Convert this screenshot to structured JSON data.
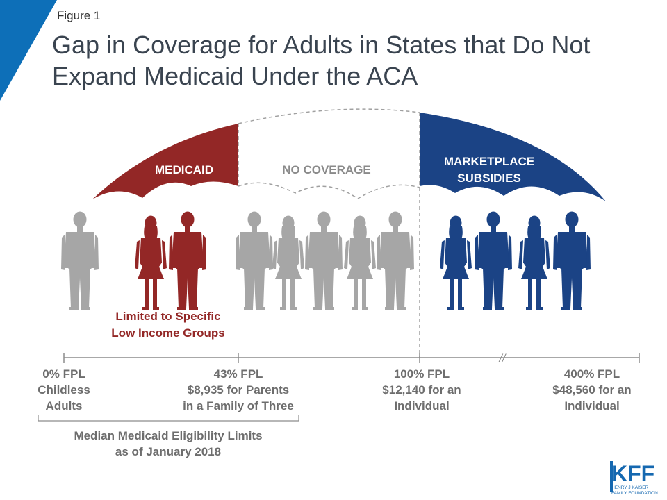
{
  "figure_label": "Figure 1",
  "title": [
    "Gap in Coverage for Adults in States that Do Not",
    "Expand Medicaid Under the ACA"
  ],
  "segments": {
    "medicaid": "MEDICAID",
    "no_coverage": "NO COVERAGE",
    "marketplace": [
      "MARKETPLACE",
      "SUBSIDIES"
    ]
  },
  "medicaid_note": [
    "Limited to Specific",
    "Low Income Groups"
  ],
  "axis_ticks": [
    {
      "lines": [
        "0% FPL",
        "Childless",
        "Adults"
      ]
    },
    {
      "lines": [
        "43% FPL",
        "$8,935 for Parents",
        "in a Family of Three"
      ]
    },
    {
      "lines": [
        "100% FPL",
        "$12,140 for an",
        "Individual"
      ]
    },
    {
      "lines": [
        "400% FPL",
        "$48,560 for an",
        "Individual"
      ]
    }
  ],
  "axis_break": "//",
  "bracket_caption": [
    "Median Medicaid Eligibility Limits",
    "as of January 2018"
  ],
  "logo": {
    "text": "KFF",
    "subtext": [
      "HENRY J KAISER",
      "FAMILY FOUNDATION"
    ]
  },
  "people": [
    {
      "group": "none",
      "gender": "male"
    },
    {
      "group": "medicaid",
      "gender": "female"
    },
    {
      "group": "medicaid",
      "gender": "male"
    },
    {
      "group": "none",
      "gender": "male"
    },
    {
      "group": "none",
      "gender": "female"
    },
    {
      "group": "none",
      "gender": "male"
    },
    {
      "group": "none",
      "gender": "female"
    },
    {
      "group": "none",
      "gender": "male"
    },
    {
      "group": "marketplace",
      "gender": "female"
    },
    {
      "group": "marketplace",
      "gender": "male"
    },
    {
      "group": "marketplace",
      "gender": "female"
    },
    {
      "group": "marketplace",
      "gender": "male"
    }
  ],
  "colors": {
    "medicaid": "#932726",
    "marketplace": "#1b4385",
    "none": "#a6a6a6",
    "title": "#3a4450",
    "axis": "#8c8c8c",
    "corner": "#0d6fb8",
    "kff": "#1568b0"
  }
}
